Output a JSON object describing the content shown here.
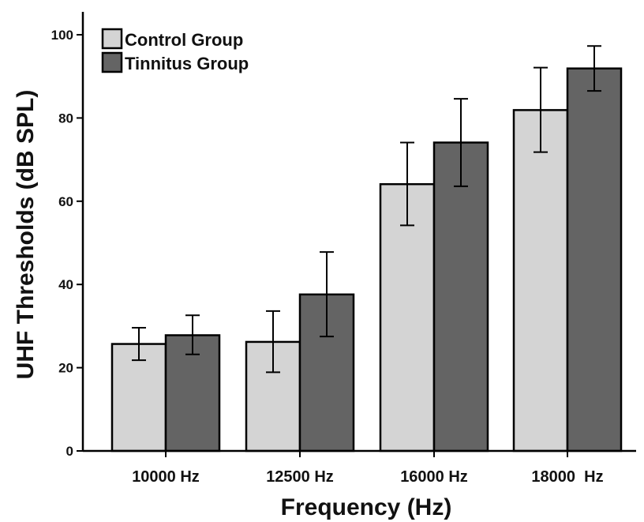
{
  "chart_data": {
    "type": "bar",
    "title": "",
    "xlabel": "Frequency (Hz)",
    "ylabel": "UHF Thresholds (dB SPL)",
    "categories": [
      "10000 Hz",
      "12500 Hz",
      "16000 Hz",
      "18000  Hz"
    ],
    "ylim": [
      0,
      105
    ],
    "yticks": [
      0,
      20,
      40,
      60,
      80,
      100
    ],
    "grid": false,
    "legend_position": "top-left",
    "series": [
      {
        "name": "Control Group",
        "color": "#d4d4d4",
        "values": [
          25.7,
          26.2,
          64.1,
          81.9
        ],
        "error_low": [
          21.8,
          18.9,
          54.2,
          71.8
        ],
        "error_high": [
          29.6,
          33.6,
          74.1,
          92.1
        ]
      },
      {
        "name": "Tinnitus Group",
        "color": "#646464",
        "values": [
          27.8,
          37.6,
          74.1,
          91.9
        ],
        "error_low": [
          23.2,
          27.5,
          63.6,
          86.5
        ],
        "error_high": [
          32.6,
          47.8,
          84.6,
          97.3
        ]
      }
    ]
  }
}
